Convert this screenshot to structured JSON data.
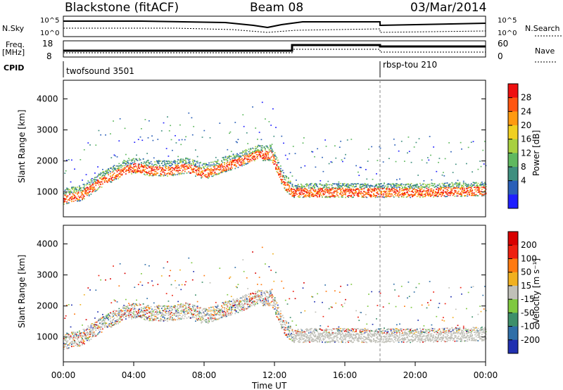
{
  "header": {
    "station": "Blackstone (fitACF)",
    "beam": "Beam 08",
    "date": "03/Mar/2014"
  },
  "summary": {
    "nsky_label": "N.Sky",
    "nsky_ticks": [
      "10^5",
      "10^0"
    ],
    "nsearch_label": "N.Search",
    "nsearch_ticks": [
      "10^5",
      "10^0"
    ],
    "freq_label_1": "Freq.",
    "freq_label_2": "[MHz]",
    "freq_ticks": [
      "18",
      "8"
    ],
    "nave_label": "Nave",
    "nave_ticks": [
      "60",
      "0"
    ],
    "cpid_label": "CPID",
    "cpid_1": "twofsound 3501",
    "cpid_2": "rbsp-tou 210"
  },
  "axes": {
    "ylabel": "Slant Range [km]",
    "xlabel": "Time UT",
    "yticks": [
      "4000",
      "3000",
      "2000",
      "1000"
    ],
    "xticks": [
      "00:00",
      "04:00",
      "08:00",
      "12:00",
      "16:00",
      "20:00",
      "00:00"
    ]
  },
  "power_scale": {
    "label": "Power [dB]",
    "ticks": [
      "28",
      "24",
      "20",
      "16",
      "12",
      "8",
      "4"
    ],
    "colors": [
      "#1f1fff",
      "#2a5fb8",
      "#3f8f7f",
      "#5fb85f",
      "#a8d040",
      "#f0d020",
      "#ff9a10",
      "#ff5510",
      "#ee1010"
    ]
  },
  "velocity_scale": {
    "label": "Velocity [m s⁻¹]",
    "ticks": [
      "200",
      "100",
      "50",
      "15",
      "-15",
      "-50",
      "-100",
      "-200"
    ],
    "colors": [
      "#2030b0",
      "#2f6fa8",
      "#3d8f6a",
      "#7fc840",
      "#c0c0b8",
      "#f0b020",
      "#ff7a10",
      "#ee2010",
      "#d80000"
    ]
  },
  "chart_data": [
    {
      "type": "heatmap",
      "title": "",
      "xlabel": "Time UT",
      "ylabel": "Slant Range [km]",
      "colorbar_label": "Power [dB]",
      "x_range_hours": [
        0,
        24
      ],
      "y_range_km": [
        200,
        4600
      ],
      "main_scatter_trace": {
        "x_hours": [
          0,
          1,
          2,
          3,
          4,
          5,
          6,
          7,
          8,
          9,
          10,
          11,
          11.8,
          12.5,
          13,
          16,
          18,
          20,
          24
        ],
        "range_km": [
          800,
          900,
          1300,
          1600,
          1800,
          1700,
          1700,
          1800,
          1600,
          1800,
          2000,
          2200,
          2200,
          1300,
          1000,
          1000,
          1000,
          1000,
          1050
        ]
      }
    },
    {
      "type": "heatmap",
      "title": "",
      "xlabel": "Time UT",
      "ylabel": "Slant Range [km]",
      "colorbar_label": "Velocity [m s⁻¹]",
      "x_range_hours": [
        0,
        24
      ],
      "y_range_km": [
        200,
        4600
      ]
    }
  ]
}
